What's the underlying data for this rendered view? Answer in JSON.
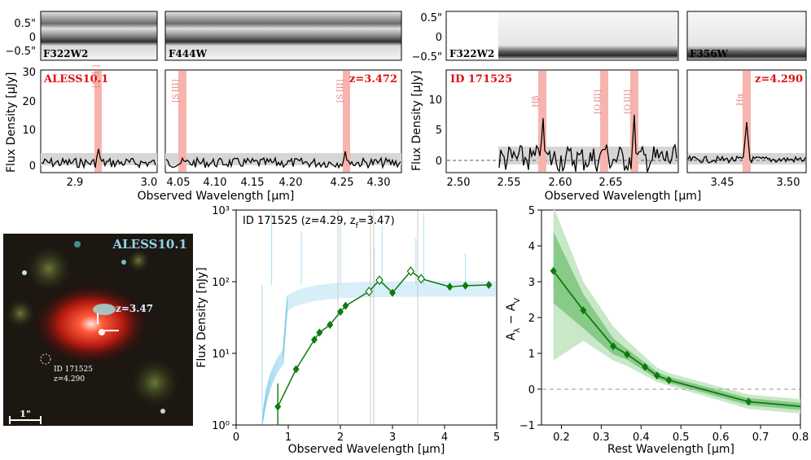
{
  "colors": {
    "model": "#87ceeb",
    "obs": "#0f7a0f",
    "emission_band": "#f7b4ae",
    "red_label": "#e01010",
    "cutout_label": "#8fd3ea"
  },
  "top_left": {
    "source": "ALESS10.1",
    "redshift_label": "z=3.472",
    "filters": [
      "F322W2",
      "F444W"
    ],
    "spatial_ticks": [
      "0.5\"",
      "0",
      "−0.5\""
    ],
    "flux_ticks": [
      "0",
      "10",
      "20",
      "30"
    ],
    "line_labels": [
      "[S III]",
      "[S III]",
      "[S III]"
    ],
    "xticks_a": [
      "2.9",
      "3.0"
    ],
    "xticks_b": [
      "4.05",
      "4.10",
      "4.15",
      "4.20",
      "4.25",
      "4.30"
    ],
    "ylabel": "Flux Density [μJy]",
    "xlabel": "Observed Wavelength [μm]"
  },
  "top_right": {
    "source": "ID 171525",
    "redshift_label": "z=4.290",
    "filters": [
      "F322W2",
      "F356W"
    ],
    "spatial_ticks": [
      "0.5\"",
      "0",
      "−0.5\""
    ],
    "flux_ticks": [
      "0",
      "5",
      "10"
    ],
    "line_labels": [
      "Hβ",
      "[O III]",
      "[O III]",
      "Hα"
    ],
    "xticks_a": [
      "2.50",
      "2.55",
      "2.60",
      "2.65"
    ],
    "xticks_b": [
      "3.45",
      "3.50"
    ],
    "ylabel": "Flux Density [μJy]",
    "xlabel": "Observed Wavelength [μm]"
  },
  "cutout": {
    "title": "ALESS10.1",
    "z_label": "z=3.47",
    "id_label": "ID 171525",
    "id_z_label": "z=4.290",
    "scale_label": "1\""
  },
  "chart_data": [
    {
      "type": "scatter",
      "title": "ID 171525 (z=4.29, z",
      "title_sub": "f",
      "title_end": "=3.47)",
      "xlabel": "Observed Wavelength [μm]",
      "ylabel": "Flux Density [nJy]",
      "xlim": [
        0,
        5
      ],
      "ylim_log": [
        1,
        1000
      ],
      "xticks": [
        "0",
        "1",
        "2",
        "3",
        "4",
        "5"
      ],
      "yticks": [
        "10⁰",
        "10¹",
        "10²",
        "10³"
      ],
      "photometry_filled": [
        {
          "x": 0.8,
          "y": 1.8,
          "err_lo": 1.0,
          "err_hi": 3.8
        },
        {
          "x": 1.15,
          "y": 6.0
        },
        {
          "x": 1.5,
          "y": 15.5
        },
        {
          "x": 1.6,
          "y": 19.5
        },
        {
          "x": 1.8,
          "y": 25.0
        },
        {
          "x": 2.0,
          "y": 38.0
        },
        {
          "x": 2.1,
          "y": 46.0
        },
        {
          "x": 3.0,
          "y": 70.0
        },
        {
          "x": 4.1,
          "y": 85.0
        },
        {
          "x": 4.4,
          "y": 88.0
        },
        {
          "x": 4.85,
          "y": 90.0
        }
      ],
      "photometry_open": [
        {
          "x": 2.55,
          "y": 73.0
        },
        {
          "x": 2.75,
          "y": 105.0
        },
        {
          "x": 3.35,
          "y": 140.0
        },
        {
          "x": 3.55,
          "y": 110.0
        }
      ]
    },
    {
      "type": "line",
      "xlabel": "Rest Wavelength [μm]",
      "ylabel": "Aλ − AV",
      "xlim": [
        0.15,
        0.8
      ],
      "ylim": [
        -1,
        5
      ],
      "xticks": [
        "0.2",
        "0.3",
        "0.4",
        "0.5",
        "0.6",
        "0.7",
        "0.8"
      ],
      "yticks": [
        "−1",
        "0",
        "1",
        "2",
        "3",
        "4",
        "5"
      ],
      "x": [
        0.18,
        0.255,
        0.33,
        0.365,
        0.41,
        0.44,
        0.47,
        0.67
      ],
      "y": [
        3.3,
        2.2,
        1.2,
        0.97,
        0.62,
        0.38,
        0.25,
        -0.35
      ],
      "tail": {
        "x": [
          0.67,
          0.8
        ],
        "y": [
          -0.35,
          -0.48
        ]
      }
    }
  ]
}
